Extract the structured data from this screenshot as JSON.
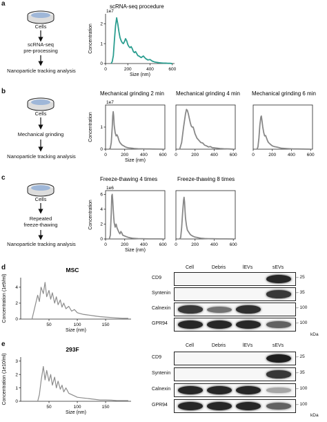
{
  "panels": {
    "a": {
      "letter": "a"
    },
    "b": {
      "letter": "b"
    },
    "c": {
      "letter": "c"
    },
    "d": {
      "letter": "d"
    },
    "e": {
      "letter": "e"
    }
  },
  "flow": {
    "a": {
      "cells": "Cells",
      "step1": "scRNA-seq",
      "step2": "pre-processing",
      "final": "Nanoparticle tracking analysis"
    },
    "b": {
      "cells": "Cells",
      "step1": "Mechanical grinding",
      "final": "Nanoparticle tracking analysis"
    },
    "c": {
      "cells": "Cells",
      "step1": "Repeated",
      "step2": "freeze-thawing",
      "final": "Nanoparticle tracking analysis"
    }
  },
  "chart_data": [
    {
      "id": "a1",
      "type": "line",
      "title": "scRNA-seq procedure",
      "xlabel": "Size (nm)",
      "ylabel": "Concentration",
      "exponent": "1e7",
      "color": "#2a9d8f",
      "xlim": [
        0,
        620
      ],
      "ylim": [
        0,
        2.5
      ],
      "xticks": [
        0,
        200,
        400,
        600
      ],
      "yticks": [
        0,
        1,
        2
      ],
      "x": [
        50,
        60,
        70,
        80,
        90,
        100,
        110,
        120,
        130,
        140,
        150,
        160,
        170,
        180,
        190,
        200,
        210,
        220,
        230,
        240,
        250,
        260,
        270,
        280,
        290,
        300,
        320,
        340,
        360,
        380,
        400,
        420,
        440,
        460,
        480,
        500,
        520,
        540,
        560,
        580,
        600
      ],
      "y": [
        0,
        0.1,
        0.4,
        1.2,
        1.9,
        2.3,
        2.0,
        1.6,
        1.3,
        1.15,
        1.05,
        1.0,
        1.1,
        1.25,
        1.15,
        0.95,
        0.85,
        0.8,
        0.85,
        0.75,
        0.6,
        0.55,
        0.6,
        0.5,
        0.4,
        0.38,
        0.3,
        0.38,
        0.25,
        0.18,
        0.2,
        0.12,
        0.08,
        0.06,
        0.04,
        0.03,
        0.02,
        0.02,
        0.01,
        0.01,
        0.0
      ]
    },
    {
      "id": "b1",
      "type": "line",
      "title": "Mechanical grinding 2 min",
      "xlabel": "Size (nm)",
      "ylabel": "Concentration",
      "exponent": "1e7",
      "color": "#888888",
      "xlim": [
        0,
        620
      ],
      "ylim": [
        0,
        2.0
      ],
      "xticks": [
        0,
        200,
        400,
        600
      ],
      "yticks": [
        0,
        1
      ],
      "x": [
        40,
        50,
        60,
        70,
        75,
        80,
        85,
        90,
        100,
        110,
        120,
        130,
        140,
        150,
        160,
        170,
        180,
        190,
        200,
        220,
        240,
        260,
        280,
        300,
        340,
        380,
        420,
        460,
        500,
        560,
        600
      ],
      "y": [
        0,
        0.05,
        0.3,
        1.0,
        1.5,
        1.7,
        1.5,
        1.1,
        0.75,
        0.6,
        0.65,
        0.55,
        0.4,
        0.3,
        0.25,
        0.2,
        0.17,
        0.15,
        0.12,
        0.08,
        0.06,
        0.05,
        0.04,
        0.03,
        0.02,
        0.015,
        0.01,
        0.01,
        0.005,
        0.003,
        0
      ]
    },
    {
      "id": "b2",
      "type": "line",
      "title": "Mechanical grinding 4 min",
      "xlabel": "",
      "ylabel": "",
      "exponent": "",
      "color": "#888888",
      "xlim": [
        0,
        620
      ],
      "ylim": [
        0,
        2.0
      ],
      "xticks": [
        0,
        200,
        400,
        600
      ],
      "yticks": [],
      "x": [
        40,
        60,
        80,
        100,
        110,
        120,
        130,
        140,
        150,
        160,
        170,
        180,
        190,
        200,
        220,
        240,
        260,
        280,
        300,
        320,
        340,
        360,
        380,
        420,
        460,
        500,
        560,
        600
      ],
      "y": [
        0,
        0.3,
        1.0,
        1.6,
        1.8,
        1.75,
        1.6,
        1.4,
        1.2,
        1.05,
        1.0,
        1.0,
        0.85,
        0.7,
        0.5,
        0.4,
        0.3,
        0.28,
        0.18,
        0.15,
        0.1,
        0.12,
        0.07,
        0.05,
        0.03,
        0.02,
        0.01,
        0
      ]
    },
    {
      "id": "b3",
      "type": "line",
      "title": "Mechanical grinding 6 min",
      "xlabel": "",
      "ylabel": "",
      "exponent": "",
      "color": "#888888",
      "xlim": [
        0,
        620
      ],
      "ylim": [
        0,
        2.0
      ],
      "xticks": [
        0,
        200,
        400,
        600
      ],
      "yticks": [],
      "x": [
        40,
        50,
        60,
        70,
        80,
        85,
        90,
        100,
        110,
        120,
        130,
        140,
        150,
        160,
        180,
        200,
        220,
        240,
        260,
        280,
        300,
        340,
        380,
        420,
        460,
        520,
        600
      ],
      "y": [
        0,
        0.1,
        0.5,
        1.1,
        1.45,
        1.5,
        1.35,
        1.0,
        0.75,
        0.6,
        0.62,
        0.5,
        0.38,
        0.3,
        0.22,
        0.15,
        0.12,
        0.1,
        0.08,
        0.06,
        0.04,
        0.03,
        0.02,
        0.01,
        0.01,
        0.005,
        0
      ]
    },
    {
      "id": "c1",
      "type": "line",
      "title": "Freeze-thawing 4 times",
      "xlabel": "Size (nm)",
      "ylabel": "Concentration",
      "exponent": "1e6",
      "color": "#888888",
      "xlim": [
        0,
        620
      ],
      "ylim": [
        0,
        6.5
      ],
      "xticks": [
        0,
        200,
        400,
        600
      ],
      "yticks": [
        0,
        2,
        4,
        6
      ],
      "x": [
        40,
        50,
        60,
        65,
        70,
        75,
        80,
        85,
        90,
        100,
        110,
        120,
        130,
        140,
        150,
        160,
        170,
        180,
        200,
        220,
        240,
        260,
        280,
        300,
        340,
        380,
        420,
        460,
        500,
        560,
        600
      ],
      "y": [
        0,
        0.5,
        3.5,
        5.8,
        6.0,
        5.2,
        4.0,
        3.0,
        2.2,
        1.6,
        2.0,
        1.5,
        1.2,
        0.9,
        0.7,
        1.0,
        0.8,
        0.5,
        0.4,
        0.3,
        0.2,
        0.15,
        0.1,
        0.08,
        0.05,
        0.03,
        0.02,
        0.01,
        0.01,
        0.005,
        0
      ]
    },
    {
      "id": "c2",
      "type": "line",
      "title": "Freeze-thawing 8 times",
      "xlabel": "",
      "ylabel": "",
      "exponent": "",
      "color": "#888888",
      "xlim": [
        0,
        620
      ],
      "ylim": [
        0,
        6.5
      ],
      "xticks": [
        0,
        200,
        400,
        600
      ],
      "yticks": [],
      "x": [
        40,
        50,
        60,
        70,
        80,
        85,
        90,
        95,
        100,
        110,
        120,
        130,
        140,
        150,
        160,
        180,
        200,
        220,
        240,
        260,
        280,
        300,
        340,
        380,
        420,
        460,
        520,
        600
      ],
      "y": [
        0,
        0.2,
        1.5,
        3.5,
        5.2,
        5.6,
        5.0,
        3.8,
        2.8,
        1.8,
        1.2,
        1.0,
        0.8,
        0.6,
        0.5,
        0.35,
        0.25,
        0.2,
        0.15,
        0.1,
        0.08,
        0.06,
        0.04,
        0.03,
        0.02,
        0.01,
        0.005,
        0
      ]
    },
    {
      "id": "d1",
      "type": "line",
      "title": "MSC",
      "xlabel": "Size (nm)",
      "ylabel": "Concentration (1e9/ml)",
      "exponent": "",
      "color": "#8c8c8c",
      "xlim": [
        0,
        195
      ],
      "ylim": [
        0,
        5.2
      ],
      "xticks": [
        50,
        100,
        150
      ],
      "yticks": [
        0,
        2,
        4
      ],
      "x": [
        20,
        25,
        30,
        33,
        36,
        40,
        43,
        46,
        50,
        53,
        56,
        60,
        63,
        66,
        70,
        73,
        76,
        80,
        85,
        90,
        95,
        100,
        110,
        120,
        130,
        140,
        150,
        160,
        170,
        180,
        190
      ],
      "y": [
        0,
        1.5,
        3.0,
        2.2,
        4.0,
        3.2,
        4.6,
        2.8,
        3.6,
        2.5,
        3.3,
        2.0,
        2.8,
        1.8,
        2.4,
        1.5,
        2.0,
        1.3,
        1.6,
        1.0,
        1.2,
        0.8,
        0.6,
        0.5,
        0.4,
        0.3,
        0.25,
        0.2,
        0.15,
        0.1,
        0.1
      ]
    },
    {
      "id": "e1",
      "type": "line",
      "title": "293F",
      "xlabel": "Size (nm)",
      "ylabel": "Concentration (1e10/ml)",
      "exponent": "",
      "color": "#8c8c8c",
      "xlim": [
        0,
        195
      ],
      "ylim": [
        0,
        3.3
      ],
      "xticks": [
        50,
        100,
        150
      ],
      "yticks": [
        0,
        1,
        2,
        3
      ],
      "x": [
        30,
        33,
        36,
        40,
        43,
        46,
        50,
        53,
        56,
        60,
        63,
        66,
        70,
        73,
        76,
        80,
        85,
        90,
        95,
        100,
        110,
        120,
        130,
        140,
        150,
        160,
        170,
        180,
        190
      ],
      "y": [
        0,
        0.5,
        1.5,
        2.6,
        1.6,
        2.3,
        1.5,
        2.0,
        1.2,
        1.8,
        1.0,
        1.5,
        0.9,
        1.2,
        0.7,
        1.0,
        0.6,
        0.5,
        0.4,
        0.3,
        0.25,
        0.2,
        0.15,
        0.1,
        0.1,
        0.08,
        0.05,
        0.05,
        0.05
      ]
    }
  ],
  "western_blots": [
    {
      "id": "d",
      "columns": [
        "Cell",
        "Debris",
        "lEVs",
        "sEVs"
      ],
      "rows": [
        {
          "label": "CD9",
          "marker": "25",
          "bands": [
            0,
            0,
            0,
            0.95
          ]
        },
        {
          "label": "Syntenin",
          "marker": "35",
          "bands": [
            0,
            0,
            0,
            0.85
          ]
        },
        {
          "label": "Calnexin",
          "marker": "100",
          "bands": [
            0.85,
            0.5,
            0.9,
            0
          ]
        },
        {
          "label": "GPR94",
          "marker": "100",
          "bands": [
            0.95,
            0.95,
            0.95,
            0.6
          ]
        }
      ],
      "unit": "kDa"
    },
    {
      "id": "e",
      "columns": [
        "Cell",
        "Debris",
        "lEVs",
        "sEVs"
      ],
      "rows": [
        {
          "label": "CD9",
          "marker": "25",
          "bands": [
            0,
            0,
            0,
            1.0
          ]
        },
        {
          "label": "Syntenin",
          "marker": "35",
          "bands": [
            0,
            0,
            0,
            0.85
          ]
        },
        {
          "label": "Calnexin",
          "marker": "100",
          "bands": [
            0.95,
            0.95,
            0.95,
            0.2
          ]
        },
        {
          "label": "GPR94",
          "marker": "100",
          "bands": [
            0.95,
            0.95,
            0.95,
            0.6
          ]
        }
      ],
      "unit": "kDa"
    }
  ]
}
